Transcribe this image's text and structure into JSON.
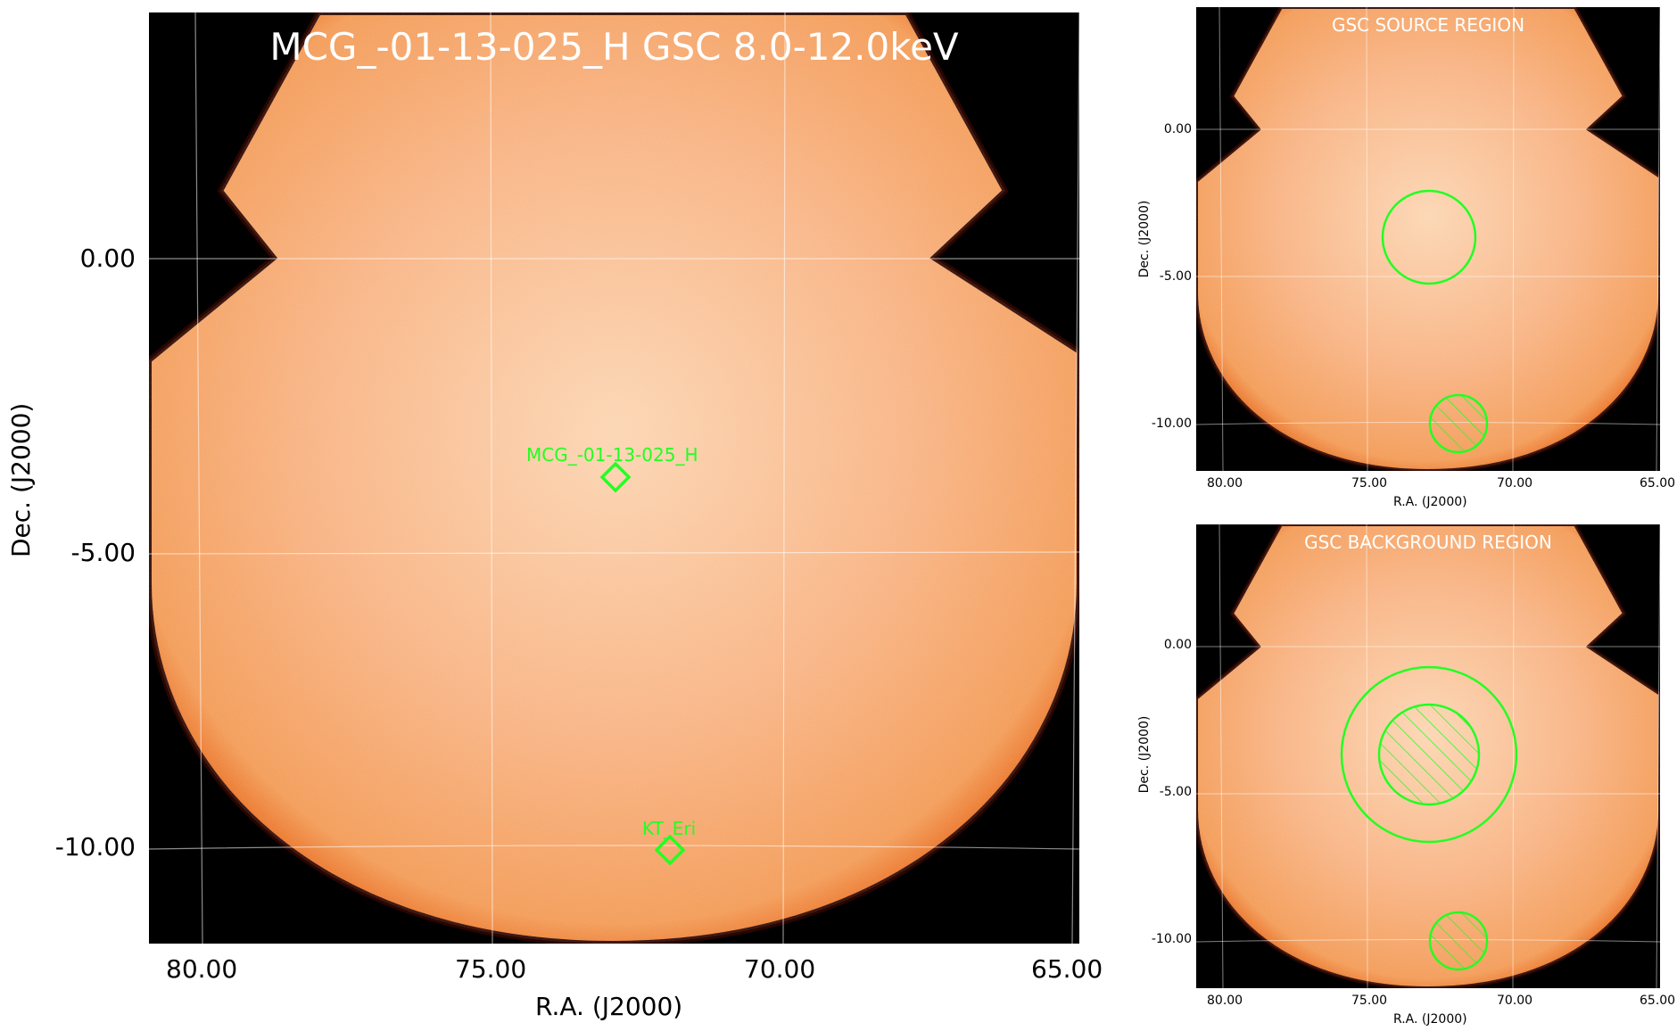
{
  "main": {
    "title": "MCG_-01-13-025_H GSC 8.0-12.0keV",
    "xlabel": "R.A. (J2000)",
    "ylabel": "Dec. (J2000)",
    "x_ticks": [
      "80.00",
      "75.00",
      "70.00",
      "65.00"
    ],
    "y_ticks": [
      "0.00",
      "-5.00",
      "-10.00"
    ],
    "sources": [
      {
        "name": "MCG_-01-13-025_H"
      },
      {
        "name": "KT_Eri"
      }
    ]
  },
  "source_panel": {
    "title": "GSC SOURCE REGION",
    "xlabel": "R.A. (J2000)",
    "ylabel": "Dec. (J2000)",
    "x_ticks": [
      "80.00",
      "75.00",
      "70.00",
      "65.00"
    ],
    "y_ticks": [
      "0.00",
      "-5.00",
      "-10.00"
    ]
  },
  "background_panel": {
    "title": "GSC BACKGROUND REGION",
    "xlabel": "R.A. (J2000)",
    "ylabel": "Dec. (J2000)",
    "x_ticks": [
      "80.00",
      "75.00",
      "70.00",
      "65.00"
    ],
    "y_ticks": [
      "0.00",
      "-5.00",
      "-10.00"
    ]
  },
  "colors": {
    "region": "#22ff22",
    "sky_center": "#fcd0ac",
    "sky_mid": "#f8ae78",
    "sky_edge": "#f28a3c",
    "background": "#000000",
    "grid": "#ffffff"
  },
  "icons": {
    "source_marker": "green-diamond-icon",
    "region_circle": "green-circle-icon",
    "excluded_region": "hatched-circle-icon"
  }
}
